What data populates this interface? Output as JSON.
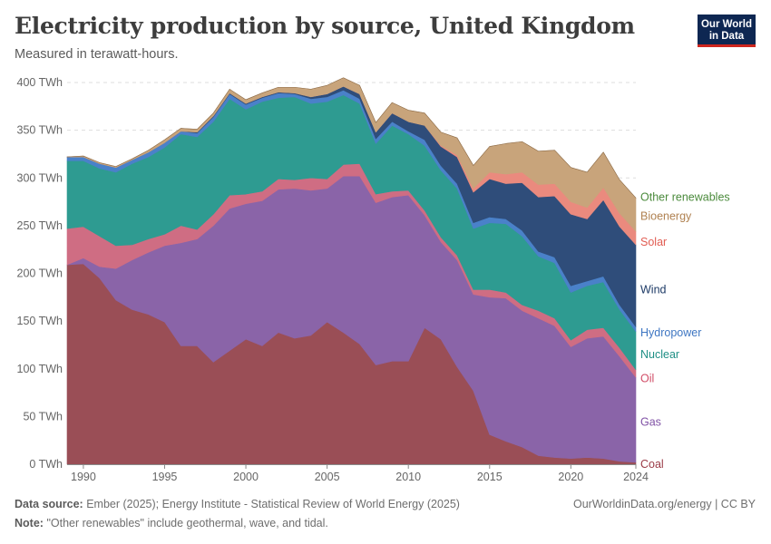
{
  "header": {
    "title": "Electricity production by source, United Kingdom",
    "subtitle": "Measured in terawatt-hours.",
    "logo_line1": "Our World",
    "logo_line2": "in Data"
  },
  "footer": {
    "source_label": "Data source:",
    "source_text": "Ember (2025); Energy Institute - Statistical Review of World Energy (2025)",
    "note_label": "Note:",
    "note_text": "\"Other renewables\" include geothermal, wave, and tidal.",
    "credit": "OurWorldinData.org/energy | CC BY"
  },
  "chart_data": {
    "type": "area",
    "stacked": true,
    "title": "Electricity production by source, United Kingdom",
    "subtitle": "Measured in terawatt-hours.",
    "ylim": [
      0,
      400
    ],
    "y_ticks": [
      0,
      50,
      100,
      150,
      200,
      250,
      300,
      350,
      400
    ],
    "y_tick_labels": [
      "0 TWh",
      "50 TWh",
      "100 TWh",
      "150 TWh",
      "200 TWh",
      "250 TWh",
      "300 TWh",
      "350 TWh",
      "400 TWh"
    ],
    "x_ticks": [
      1990,
      1995,
      2000,
      2005,
      2010,
      2015,
      2020,
      2024
    ],
    "x": [
      1989,
      1990,
      1991,
      1992,
      1993,
      1994,
      1995,
      1996,
      1997,
      1998,
      1999,
      2000,
      2001,
      2002,
      2003,
      2004,
      2005,
      2006,
      2007,
      2008,
      2009,
      2010,
      2011,
      2012,
      2013,
      2014,
      2015,
      2016,
      2017,
      2018,
      2019,
      2020,
      2021,
      2022,
      2023,
      2024
    ],
    "grid": "horizontal dashed",
    "legend": "labels at right end of series",
    "series": [
      {
        "name": "Coal",
        "color": "#9a4e56",
        "values": [
          209,
          210,
          195,
          172,
          162,
          157,
          149,
          124,
          124,
          107,
          119,
          131,
          124,
          138,
          132,
          135,
          149,
          138,
          126,
          104,
          108,
          108,
          143,
          131,
          102,
          77,
          31,
          24,
          18,
          9,
          7,
          6,
          7,
          6,
          3,
          2
        ]
      },
      {
        "name": "Gas",
        "color": "#8a64a8",
        "values": [
          0,
          6,
          12,
          33,
          52,
          65,
          80,
          108,
          112,
          143,
          149,
          142,
          152,
          150,
          157,
          152,
          140,
          164,
          176,
          170,
          172,
          174,
          118,
          102,
          112,
          101,
          144,
          150,
          143,
          144,
          138,
          117,
          125,
          128,
          110,
          89
        ]
      },
      {
        "name": "Oil",
        "color": "#cf6d83",
        "values": [
          38,
          33,
          32,
          24,
          16,
          14,
          12,
          18,
          10,
          12,
          14,
          10,
          10,
          11,
          9,
          13,
          10,
          12,
          13,
          9,
          6,
          5,
          5,
          5,
          5,
          5,
          8,
          6,
          6,
          8,
          8,
          7,
          9,
          9,
          9,
          8
        ]
      },
      {
        "name": "Nuclear",
        "color": "#2e9b91",
        "values": [
          71,
          69,
          71,
          77,
          85,
          86,
          91,
          96,
          97,
          97,
          101,
          89,
          94,
          85,
          87,
          78,
          81,
          73,
          63,
          53,
          69,
          59,
          68,
          70,
          70,
          64,
          70,
          72,
          72,
          57,
          58,
          50,
          46,
          48,
          40,
          40
        ]
      },
      {
        "name": "Hydropower",
        "color": "#4a81c9",
        "values": [
          4,
          4,
          5,
          5,
          4,
          5,
          5,
          3,
          4,
          5,
          5,
          5,
          4,
          5,
          3,
          5,
          5,
          5,
          5,
          5,
          4,
          3,
          6,
          5,
          5,
          6,
          6,
          5,
          6,
          5,
          6,
          7,
          5,
          6,
          5,
          5
        ]
      },
      {
        "name": "Wind",
        "color": "#2f4d7a",
        "values": [
          0,
          0,
          0,
          0,
          0,
          0,
          0,
          0,
          1,
          1,
          1,
          1,
          1,
          1,
          1,
          2,
          3,
          4,
          5,
          7,
          9,
          10,
          15,
          20,
          28,
          32,
          40,
          37,
          50,
          57,
          64,
          75,
          65,
          80,
          82,
          86
        ]
      },
      {
        "name": "Solar",
        "color": "#ea8a7e",
        "values": [
          0,
          0,
          0,
          0,
          0,
          0,
          0,
          0,
          0,
          0,
          0,
          0,
          0,
          0,
          0,
          0,
          0,
          0,
          0,
          0,
          0,
          0,
          0,
          1,
          2,
          4,
          7,
          10,
          11,
          13,
          13,
          13,
          12,
          13,
          14,
          14
        ]
      },
      {
        "name": "Bioenergy",
        "color": "#c8a47b",
        "values": [
          0,
          1,
          1,
          1,
          1,
          2,
          3,
          3,
          3,
          3,
          4,
          4,
          4,
          5,
          6,
          8,
          9,
          9,
          9,
          10,
          11,
          12,
          13,
          14,
          18,
          24,
          27,
          32,
          32,
          35,
          35,
          36,
          37,
          37,
          35,
          35
        ]
      },
      {
        "name": "Other renewables",
        "color": "#8c6c4a",
        "values": [
          0,
          0,
          0,
          0,
          0,
          0,
          0,
          0,
          0,
          0,
          0,
          0,
          0,
          0,
          0,
          0,
          0,
          0,
          0,
          0,
          0,
          0,
          0,
          0,
          0,
          0,
          0,
          0,
          0,
          0,
          0,
          0,
          0,
          0,
          0,
          0
        ]
      }
    ],
    "labels": [
      {
        "name": "Other renewables",
        "color": "#4a8a3b",
        "anchor_value": 280
      },
      {
        "name": "Bioenergy",
        "color": "#b08252",
        "anchor_value": 260
      },
      {
        "name": "Solar",
        "color": "#e15c52",
        "anchor_value": 233
      },
      {
        "name": "Wind",
        "color": "#1d3a66",
        "anchor_value": 183
      },
      {
        "name": "Hydropower",
        "color": "#3e76c2",
        "anchor_value": 138
      },
      {
        "name": "Nuclear",
        "color": "#1f8f85",
        "anchor_value": 115
      },
      {
        "name": "Oil",
        "color": "#d14d67",
        "anchor_value": 90
      },
      {
        "name": "Gas",
        "color": "#8153a6",
        "anchor_value": 44
      },
      {
        "name": "Coal",
        "color": "#9a3a46",
        "anchor_value": 0
      }
    ]
  }
}
